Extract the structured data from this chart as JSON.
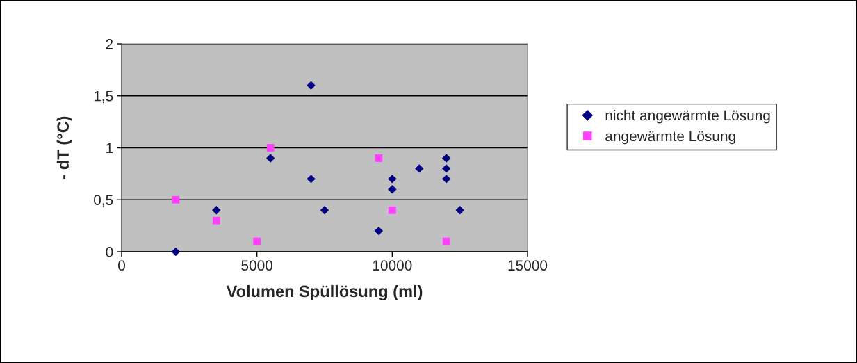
{
  "chart_data": {
    "type": "scatter",
    "xlabel": "Volumen Spüllösung (ml)",
    "ylabel": "- dT (°C)",
    "xlim": [
      0,
      15000
    ],
    "xticks": [
      0,
      5000,
      10000,
      15000
    ],
    "ylim": [
      0,
      2
    ],
    "yticks": [
      0,
      {
        "value": 0.5,
        "label": "0,5"
      },
      1,
      {
        "value": 1.5,
        "label": "1,5"
      },
      2
    ],
    "grid": "y",
    "legend": "right",
    "series": [
      {
        "name": "nicht angewärmte Lösung",
        "color": "#000080",
        "marker": "diamond",
        "x": [
          2000,
          3500,
          5000,
          5500,
          7000,
          7000,
          7500,
          9500,
          10000,
          10000,
          11000,
          12000,
          12000,
          12000,
          12500
        ],
        "values": [
          0,
          0.4,
          null,
          0.9,
          1.6,
          0.7,
          0.4,
          0.2,
          0.7,
          0.6,
          0.8,
          0.9,
          0.8,
          0.7,
          0.4
        ]
      },
      {
        "name": "angewärmte Lösung",
        "color": "#ff40ff",
        "marker": "square",
        "x": [
          2000,
          3500,
          5000,
          5500,
          9500,
          10000,
          12000
        ],
        "values": [
          0.5,
          0.3,
          0.1,
          1.0,
          0.9,
          0.4,
          0.1
        ]
      }
    ]
  }
}
